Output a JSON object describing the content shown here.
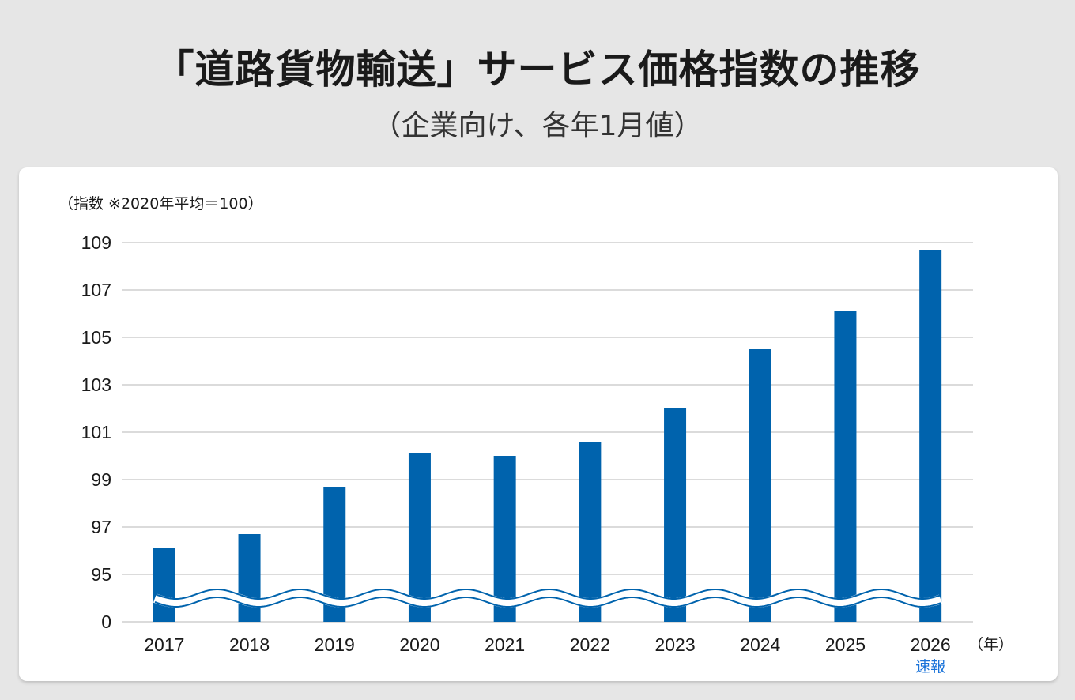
{
  "title": "「道路貨物輸送」サービス価格指数の推移",
  "subtitle": "（企業向け、各年1月値）",
  "chart_data": {
    "type": "bar",
    "title": "「道路貨物輸送」サービス価格指数の推移",
    "subtitle": "（企業向け、各年1月値）",
    "ylabel": "（指数 ※2020年平均＝100）",
    "xlabel": "（年）",
    "categories": [
      "2017",
      "2018",
      "2019",
      "2020",
      "2021",
      "2022",
      "2023",
      "2024",
      "2025",
      "2026"
    ],
    "values": [
      96.1,
      96.7,
      98.7,
      100.1,
      100.0,
      100.6,
      102.0,
      104.5,
      106.1,
      108.7
    ],
    "category_notes": {
      "2026": "速報"
    },
    "yticks": [
      "0",
      "95",
      "97",
      "99",
      "101",
      "103",
      "105",
      "107",
      "109"
    ],
    "ylim": [
      95,
      109
    ],
    "axis_break": true,
    "grid": true,
    "colors": {
      "bar": "#0063ad",
      "note": "#1a73d9",
      "grid": "#cfcfcf"
    }
  }
}
